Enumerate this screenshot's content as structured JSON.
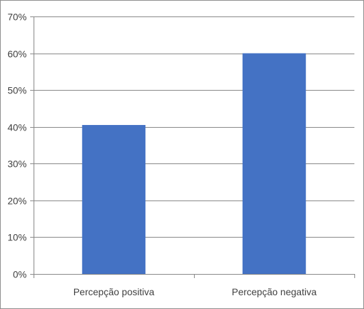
{
  "chart_data": {
    "type": "bar",
    "categories": [
      "Percepção positiva",
      "Percepção negativa"
    ],
    "values": [
      0.405,
      0.6
    ],
    "ylim": [
      0,
      0.7
    ],
    "y_ticks": [
      0,
      0.1,
      0.2,
      0.3,
      0.4,
      0.5,
      0.6,
      0.7
    ],
    "y_tick_labels": [
      "0%",
      "10%",
      "20%",
      "30%",
      "40%",
      "50%",
      "60%",
      "70%"
    ],
    "grid": true,
    "bar_color": "#4472C4",
    "grid_color": "#868686"
  }
}
